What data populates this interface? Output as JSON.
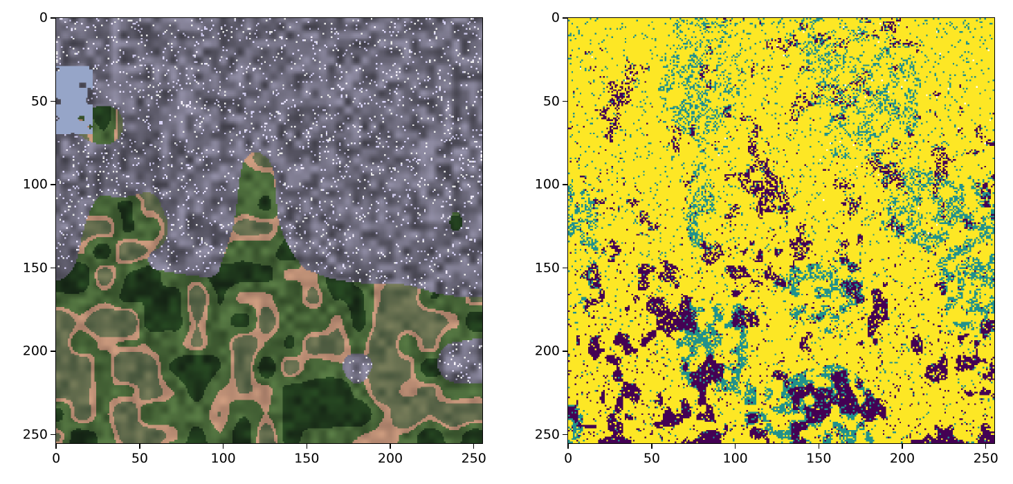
{
  "figure": {
    "left_image": {
      "description_icon": "satellite-rgb-image",
      "x_ticks": [
        "0",
        "50",
        "100",
        "150",
        "200",
        "250"
      ],
      "y_ticks": [
        "0",
        "50",
        "100",
        "150",
        "200",
        "250"
      ],
      "x_tick_values": [
        0,
        50,
        100,
        150,
        200,
        250
      ],
      "y_tick_values": [
        0,
        50,
        100,
        150,
        200,
        250
      ],
      "extent": [
        0,
        256
      ]
    },
    "right_image": {
      "description_icon": "classification-map",
      "x_ticks": [
        "0",
        "50",
        "100",
        "150",
        "200",
        "250"
      ],
      "y_ticks": [
        "0",
        "50",
        "100",
        "150",
        "200",
        "250"
      ],
      "x_tick_values": [
        0,
        50,
        100,
        150,
        200,
        250
      ],
      "y_tick_values": [
        0,
        50,
        100,
        150,
        200,
        250
      ],
      "extent": [
        0,
        256
      ],
      "class_colors": [
        "#440154",
        "#21918c",
        "#fde725",
        "#ffffff"
      ]
    }
  }
}
